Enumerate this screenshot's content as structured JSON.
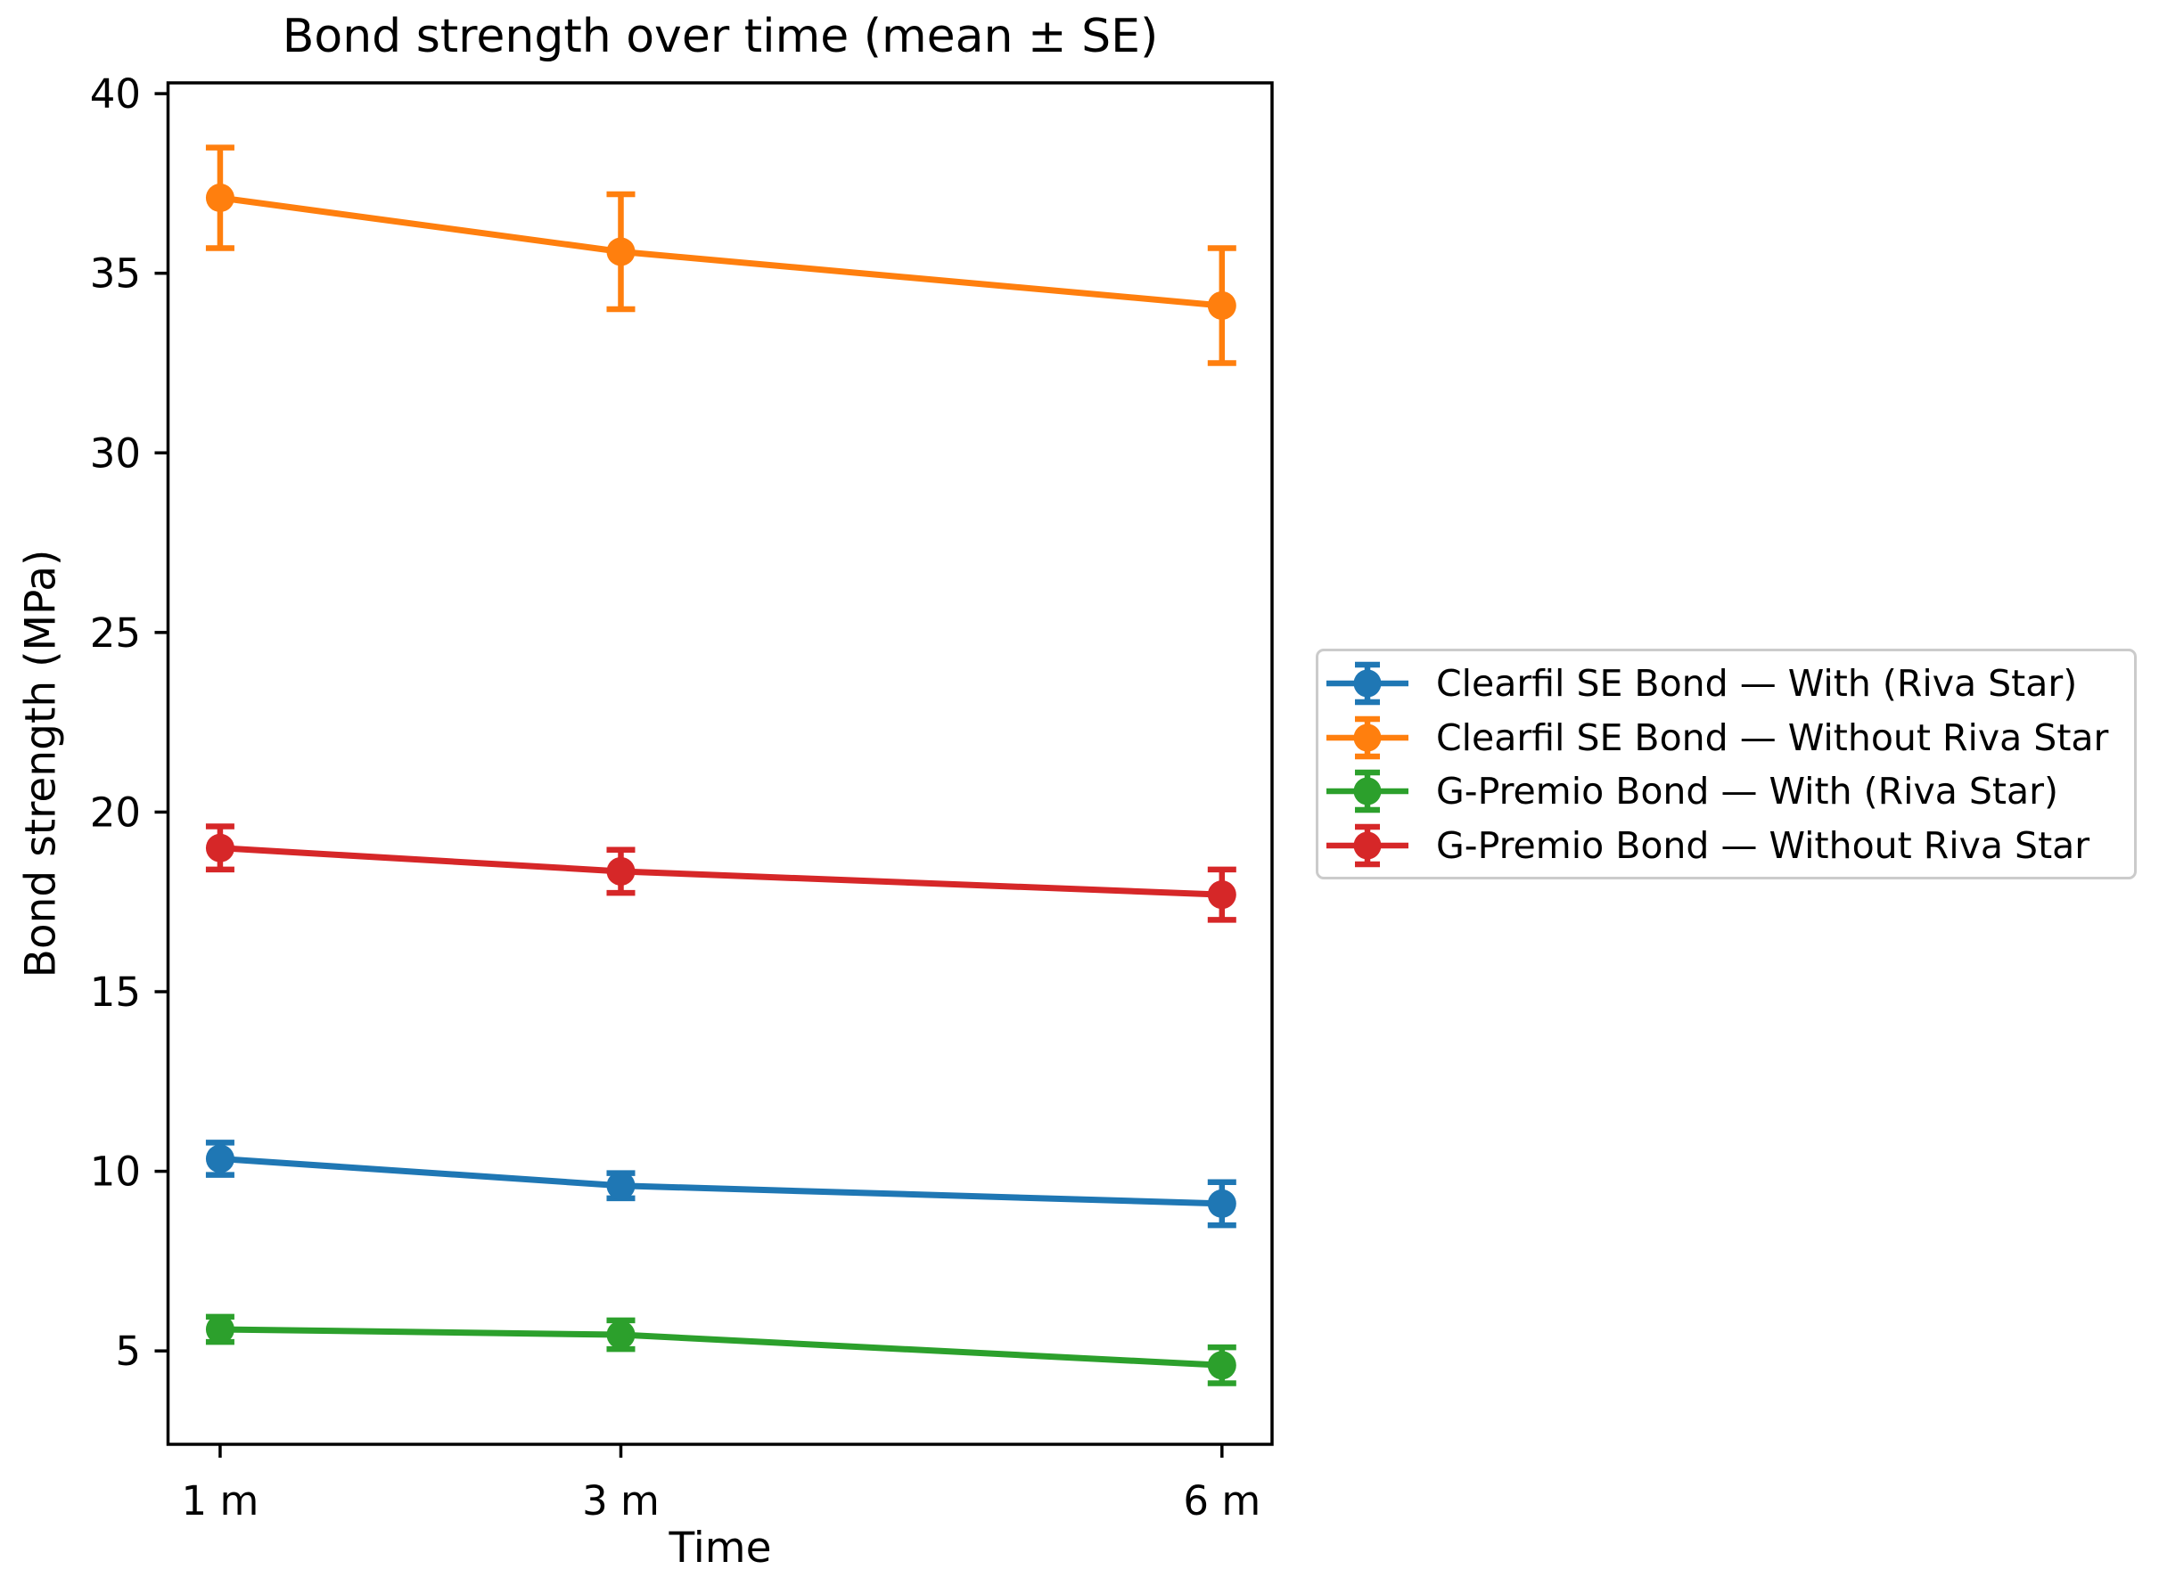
{
  "figure": {
    "background": "#ffffff",
    "text_color": "#000000",
    "axis_color": "#000000",
    "legend_border_color": "#cbcbcb"
  },
  "chart_data": {
    "type": "line",
    "title": "Bond strength over time (mean ± SE)",
    "xlabel": "Time",
    "ylabel": "Bond strength (MPa)",
    "x_categories": [
      "1 m",
      "3 m",
      "6 m"
    ],
    "x_values_months": [
      1,
      3,
      6
    ],
    "xlim": [
      0.74,
      6.25
    ],
    "ylim": [
      2.4,
      40.3
    ],
    "yticks": [
      5,
      10,
      15,
      20,
      25,
      30,
      35,
      40
    ],
    "grid": false,
    "error_bars": "mean ± standard error, capped",
    "marker": "circle",
    "legend_position": "outside right, vertically centered",
    "series": [
      {
        "name": "Clearfil SE Bond — With (Riva Star)",
        "color": "#1f77b4",
        "means": [
          10.35,
          9.6,
          9.1
        ],
        "se": [
          0.45,
          0.35,
          0.6
        ]
      },
      {
        "name": "Clearfil SE Bond — Without Riva Star",
        "color": "#ff7f0e",
        "means": [
          37.1,
          35.6,
          34.1
        ],
        "se": [
          1.4,
          1.6,
          1.6
        ]
      },
      {
        "name": "G-Premio Bond — With (Riva Star)",
        "color": "#2ca02c",
        "means": [
          5.6,
          5.45,
          4.6
        ],
        "se": [
          0.35,
          0.4,
          0.5
        ]
      },
      {
        "name": "G-Premio Bond — Without Riva Star",
        "color": "#d62728",
        "means": [
          19.0,
          18.35,
          17.7
        ],
        "se": [
          0.6,
          0.6,
          0.7
        ]
      }
    ]
  }
}
